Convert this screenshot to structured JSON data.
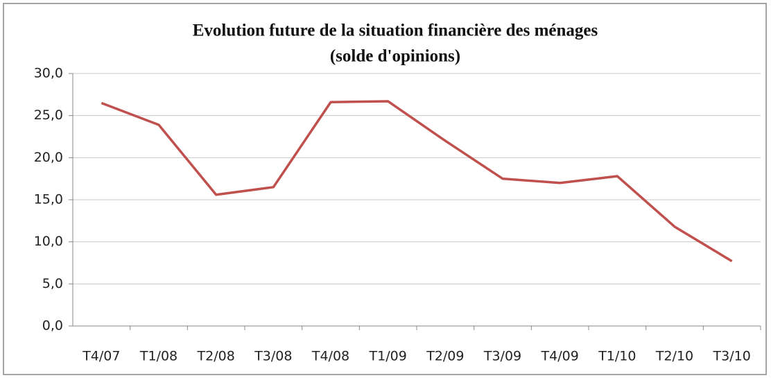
{
  "chart_data": {
    "type": "line",
    "title": [
      "Evolution  future de la situation financière des ménages",
      "(solde d'opinions)"
    ],
    "categories": [
      "T4/07",
      "T1/08",
      "T2/08",
      "T3/08",
      "T4/08",
      "T1/09",
      "T2/09",
      "T3/09",
      "T4/09",
      "T1/10",
      "T2/10",
      "T3/10"
    ],
    "series": [
      {
        "color": "#c0504d",
        "values": [
          26.5,
          23.9,
          15.6,
          16.5,
          26.6,
          26.7,
          22.0,
          17.5,
          17.0,
          17.8,
          11.8,
          7.7
        ]
      }
    ],
    "ylim": [
      0,
      30
    ],
    "yticks": [
      {
        "value": 0,
        "label": "0,0"
      },
      {
        "value": 5,
        "label": "5,0"
      },
      {
        "value": 10,
        "label": "10,0"
      },
      {
        "value": 15,
        "label": "15,0"
      },
      {
        "value": 20,
        "label": "20,0"
      },
      {
        "value": 25,
        "label": "25,0"
      },
      {
        "value": 30,
        "label": "30,0"
      }
    ],
    "grid": true
  }
}
